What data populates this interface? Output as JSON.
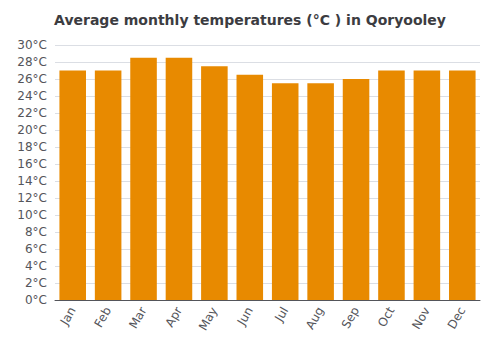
{
  "chart_data": {
    "type": "bar",
    "title": "Average monthly temperatures (°C ) in Qoryooley",
    "categories": [
      "Jan",
      "Feb",
      "Mar",
      "Apr",
      "May",
      "Jun",
      "Jul",
      "Aug",
      "Sep",
      "Oct",
      "Nov",
      "Dec"
    ],
    "values": [
      27,
      27,
      28.5,
      28.5,
      27.5,
      26.5,
      25.5,
      25.5,
      26,
      27,
      27,
      27
    ],
    "color": "#E88A00",
    "ylim": [
      0,
      30
    ],
    "yticks": [
      {
        "value": 0,
        "label": "0°C"
      },
      {
        "value": 2,
        "label": "2°C"
      },
      {
        "value": 4,
        "label": "4°C"
      },
      {
        "value": 6,
        "label": "6°C"
      },
      {
        "value": 8,
        "label": "8°C"
      },
      {
        "value": 10,
        "label": "10°C"
      },
      {
        "value": 12,
        "label": "12°C"
      },
      {
        "value": 14,
        "label": "14°C"
      },
      {
        "value": 16,
        "label": "16°C"
      },
      {
        "value": 18,
        "label": "18°C"
      },
      {
        "value": 20,
        "label": "20°C"
      },
      {
        "value": 22,
        "label": "22°C"
      },
      {
        "value": 24,
        "label": "24°C"
      },
      {
        "value": 26,
        "label": "26°C"
      },
      {
        "value": 28,
        "label": "28°C"
      },
      {
        "value": 30,
        "label": "30°C"
      }
    ],
    "grid": true
  }
}
